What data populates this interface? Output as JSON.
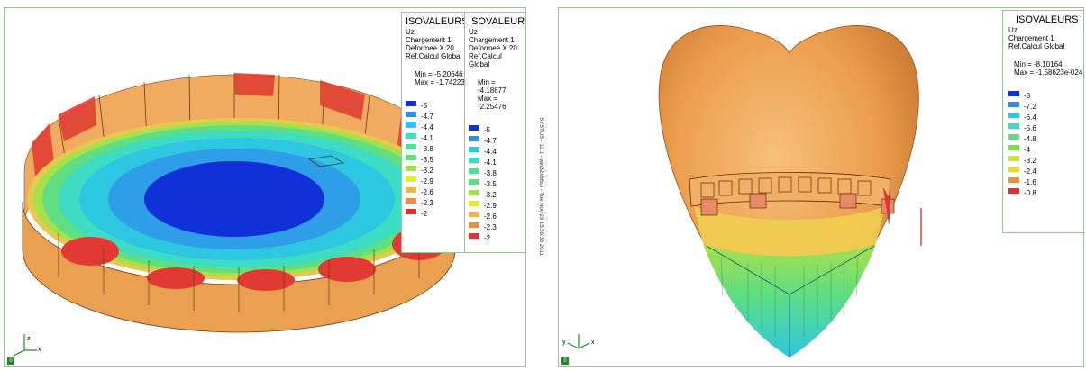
{
  "colors": {
    "band_blue_dark": "#1030d8",
    "band_blue": "#2e8ee8",
    "band_cyan": "#2ec6e0",
    "band_aqua": "#3fdcc4",
    "band_green": "#5fde82",
    "band_lime": "#a4e04a",
    "band_yellow": "#e8e838",
    "band_orange_light": "#f0b442",
    "band_orange": "#e89040",
    "band_red": "#e03030",
    "frame": "#9bc49b"
  },
  "left_view": {
    "legends": [
      {
        "title": "ISOVALEURS",
        "lines": [
          "Uz",
          "Chargement 1",
          "Deformee X 20",
          "Ref.Calcul Global"
        ],
        "min": "Min = -5.20646",
        "max": "Max = -1.74223",
        "scale": [
          "-5",
          "-4.7",
          "-4.4",
          "-4.1",
          "-3.8",
          "-3.5",
          "-3.2",
          "-2.9",
          "-2.6",
          "-2.3",
          "-2"
        ]
      },
      {
        "title": "ISOVALEURS",
        "lines": [
          "Uz",
          "Chargement 1",
          "Deformee X 20",
          "Ref.Calcul Global"
        ],
        "min": "Min = -4.18877",
        "max": "Max = -2.25476",
        "scale": [
          "-5",
          "-4.7",
          "-4.4",
          "-4.1",
          "-3.8",
          "-3.5",
          "-3.2",
          "-2.9",
          "-2.6",
          "-2.3",
          "-2"
        ]
      }
    ],
    "axes": {
      "z": "z",
      "x": "x"
    },
    "origin": "0"
  },
  "sidebar_text": "SYSTUS - 12.1 - win32x86sp - Tue Nov 29 15:59:38 2011",
  "right_view": {
    "legend": {
      "title": "ISOVALEURS",
      "lines": [
        "Uz",
        "Chargement 1",
        "Ref.Calcul Global"
      ],
      "min": "Min = -8.10164",
      "max": "Max = -1.58623e-024",
      "scale": [
        "-8",
        "-7.2",
        "-6.4",
        "-5.6",
        "-4.8",
        "-4",
        "-3.2",
        "-2.4",
        "-1.6",
        "-0.8"
      ]
    },
    "axes": {
      "y": "y",
      "x": "x"
    },
    "origin": "0"
  }
}
